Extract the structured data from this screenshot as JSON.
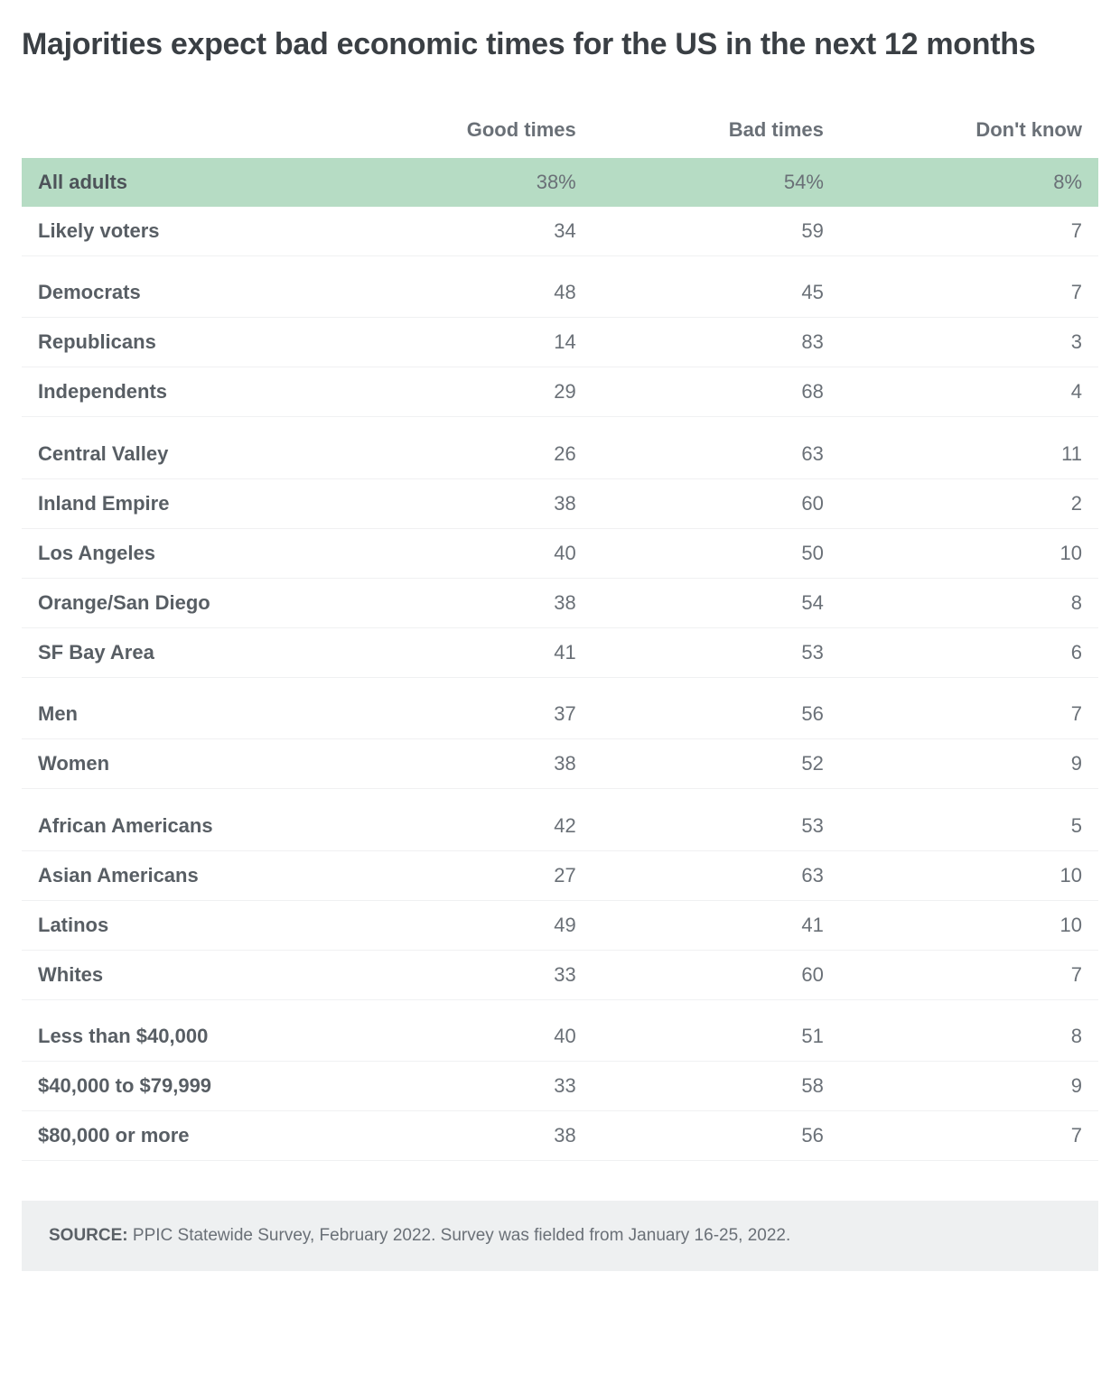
{
  "title": "Majorities expect bad economic times for the US in the next 12 months",
  "columns": {
    "c0": "",
    "c1": "Good times",
    "c2": "Bad times",
    "c3": "Don't know"
  },
  "groups": [
    {
      "rows": [
        {
          "label": "All adults",
          "good": "38%",
          "bad": "54%",
          "dk": "8%",
          "highlight": true
        },
        {
          "label": "Likely voters",
          "good": "34",
          "bad": "59",
          "dk": "7"
        }
      ]
    },
    {
      "rows": [
        {
          "label": "Democrats",
          "good": "48",
          "bad": "45",
          "dk": "7"
        },
        {
          "label": "Republicans",
          "good": "14",
          "bad": "83",
          "dk": "3"
        },
        {
          "label": "Independents",
          "good": "29",
          "bad": "68",
          "dk": "4"
        }
      ]
    },
    {
      "rows": [
        {
          "label": "Central Valley",
          "good": "26",
          "bad": "63",
          "dk": "11"
        },
        {
          "label": "Inland Empire",
          "good": "38",
          "bad": "60",
          "dk": "2"
        },
        {
          "label": "Los Angeles",
          "good": "40",
          "bad": "50",
          "dk": "10"
        },
        {
          "label": "Orange/San Diego",
          "good": "38",
          "bad": "54",
          "dk": "8"
        },
        {
          "label": "SF Bay Area",
          "good": "41",
          "bad": "53",
          "dk": "6"
        }
      ]
    },
    {
      "rows": [
        {
          "label": "Men",
          "good": "37",
          "bad": "56",
          "dk": "7"
        },
        {
          "label": "Women",
          "good": "38",
          "bad": "52",
          "dk": "9"
        }
      ]
    },
    {
      "rows": [
        {
          "label": "African Americans",
          "good": "42",
          "bad": "53",
          "dk": "5"
        },
        {
          "label": "Asian Americans",
          "good": "27",
          "bad": "63",
          "dk": "10"
        },
        {
          "label": "Latinos",
          "good": "49",
          "bad": "41",
          "dk": "10"
        },
        {
          "label": "Whites",
          "good": "33",
          "bad": "60",
          "dk": "7"
        }
      ]
    },
    {
      "rows": [
        {
          "label": "Less than $40,000",
          "good": "40",
          "bad": "51",
          "dk": "8"
        },
        {
          "label": "$40,000 to $79,999",
          "good": "33",
          "bad": "58",
          "dk": "9"
        },
        {
          "label": "$80,000 or more",
          "good": "38",
          "bad": "56",
          "dk": "7"
        }
      ]
    }
  ],
  "source_label": "SOURCE:",
  "source_text": " PPIC Statewide Survey, February 2022. Survey was fielded from January 16-25, 2022.",
  "style": {
    "highlight_bg": "#b6dcc4",
    "text_color": "#6a7077",
    "label_color": "#585e64",
    "border_color": "#f0f1f2",
    "source_bg": "#eef0f1",
    "title_fontsize": 34,
    "cell_fontsize": 22,
    "col_widths_pct": [
      30,
      23,
      23,
      24
    ]
  }
}
